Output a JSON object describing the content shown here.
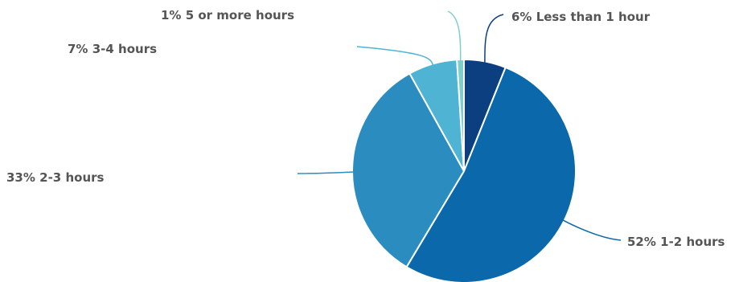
{
  "chart_data": {
    "type": "pie",
    "title": "",
    "slices": [
      {
        "label": "Less than 1 hour",
        "pct_text": "6%",
        "value": 6,
        "color": "#0c3f7f"
      },
      {
        "label": "1-2 hours",
        "pct_text": "52%",
        "value": 52,
        "color": "#0a68ab"
      },
      {
        "label": "2-3 hours",
        "pct_text": "33%",
        "value": 33,
        "color": "#2b8cc0"
      },
      {
        "label": "3-4 hours",
        "pct_text": "7%",
        "value": 7,
        "color": "#4fb3d4"
      },
      {
        "label": "5 or more hours",
        "pct_text": "1%",
        "value": 1,
        "color": "#7dcfcc"
      }
    ],
    "start_angle_deg": 0,
    "direction": "clockwise",
    "legend": "none",
    "label_style": "leader-lines"
  }
}
